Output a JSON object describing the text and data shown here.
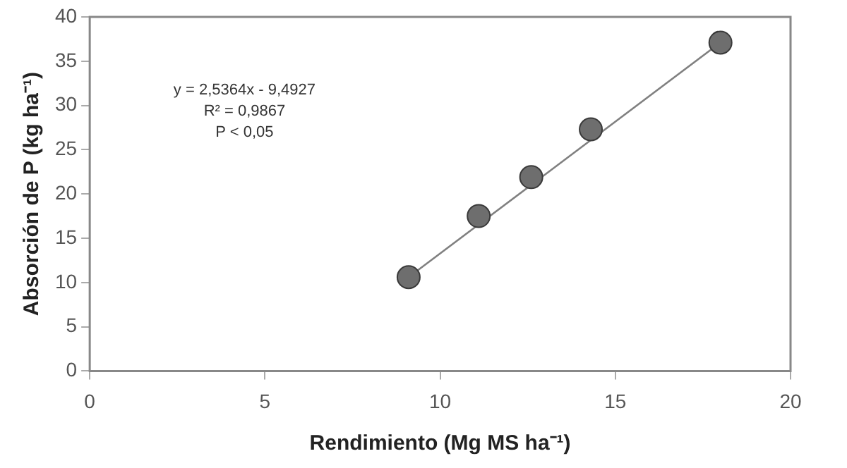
{
  "chart_data": {
    "type": "scatter",
    "xlabel": "Rendimiento (Mg MS ha⁻¹)",
    "ylabel": "Absorción de P (kg ha⁻¹)",
    "x": [
      9.1,
      11.1,
      12.6,
      14.3,
      18.0
    ],
    "series": [
      {
        "color": "#6e6e6e",
        "values": [
          10.6,
          17.5,
          21.9,
          27.3,
          37.1
        ],
        "marker": "circle"
      },
      {
        "type": "line",
        "color": "#808080",
        "x": [
          9.1,
          18.0
        ],
        "values": [
          10.6,
          37.1
        ],
        "marker": "none",
        "line_style": "solid"
      }
    ],
    "xlim": [
      0,
      20
    ],
    "xticks": [
      0,
      5,
      10,
      15,
      20
    ],
    "ylim": [
      0,
      40
    ],
    "yticks": [
      0,
      5,
      10,
      15,
      20,
      25,
      30,
      35,
      40
    ],
    "grid": false,
    "legend": false,
    "annotations": [
      "y = 2,5364x - 9,4927",
      "R² = 0,9867",
      "P < 0,05"
    ]
  }
}
